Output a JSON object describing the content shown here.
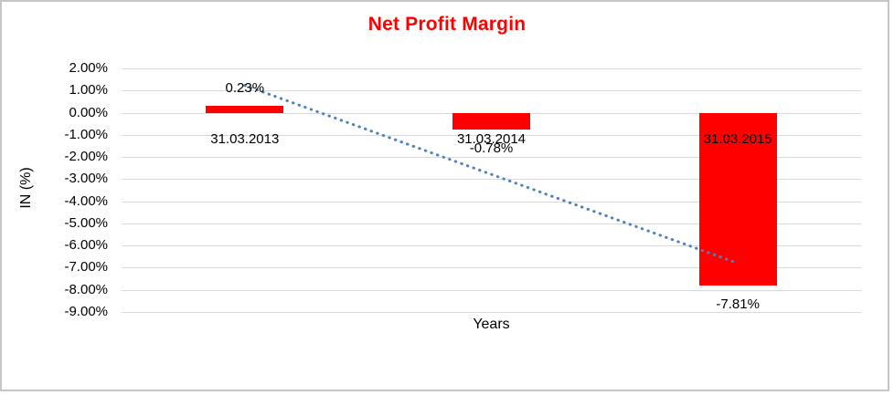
{
  "window": {
    "background": "#ffffff",
    "border_color": "#c6c6c6"
  },
  "chart_data": {
    "type": "bar",
    "title": "Net Profit Margin",
    "title_color": "#ff0000",
    "xlabel": "Years",
    "ylabel": "IN (%)",
    "categories": [
      "31.03.2013",
      "31.03.2014",
      "31.03.2015"
    ],
    "series": [
      {
        "name": "Net Profit Margin",
        "values": [
          0.23,
          -0.78,
          -7.81
        ],
        "value_labels": [
          "0.23%",
          "-0.78%",
          "-7.81%"
        ],
        "color": "#ff0000"
      }
    ],
    "ylim": [
      -9,
      2
    ],
    "ytick_step": 1,
    "yticks": [
      {
        "value": 2,
        "label": "2.00%"
      },
      {
        "value": 1,
        "label": "1.00%"
      },
      {
        "value": 0,
        "label": "0.00%"
      },
      {
        "value": -1,
        "label": "-1.00%"
      },
      {
        "value": -2,
        "label": "-2.00%"
      },
      {
        "value": -3,
        "label": "-3.00%"
      },
      {
        "value": -4,
        "label": "-4.00%"
      },
      {
        "value": -5,
        "label": "-5.00%"
      },
      {
        "value": -6,
        "label": "-6.00%"
      },
      {
        "value": -7,
        "label": "-7.00%"
      },
      {
        "value": -8,
        "label": "-8.00%"
      },
      {
        "value": -9,
        "label": "-9.00%"
      }
    ],
    "grid": true,
    "gridline_color": "#d9d9d9",
    "legend": "none",
    "trendline": {
      "type": "linear",
      "style": "dotted",
      "color": "#4f81bd",
      "start": {
        "category": "31.03.2013",
        "value": 1.23
      },
      "end": {
        "category": "31.03.2015",
        "value": -6.81
      }
    }
  }
}
